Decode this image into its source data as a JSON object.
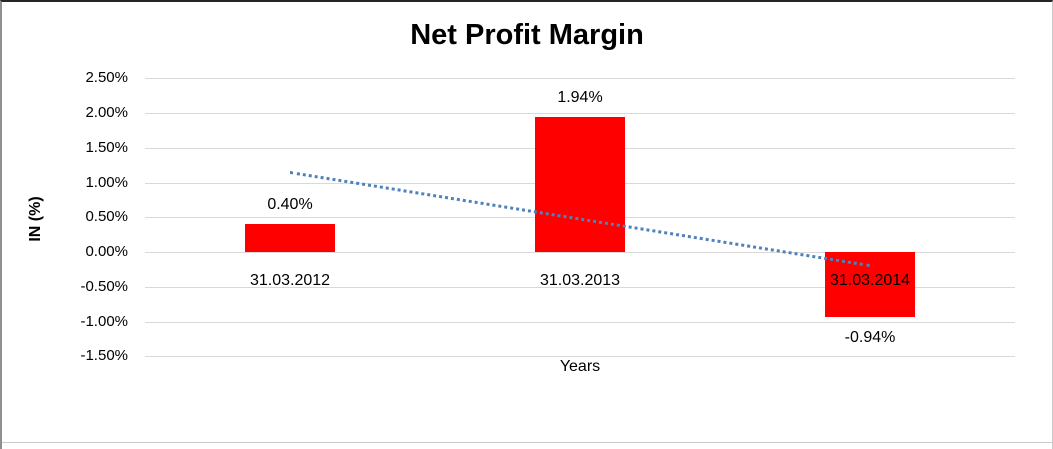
{
  "chart_data": {
    "type": "bar",
    "title": "Net Profit Margin",
    "xlabel": "Years",
    "ylabel": "IN (%)",
    "categories": [
      "31.03.2012",
      "31.03.2013",
      "31.03.2014"
    ],
    "values": [
      0.4,
      1.94,
      -0.94
    ],
    "data_labels": [
      "0.40%",
      "1.94%",
      "-0.94%"
    ],
    "ytick_labels": [
      "2.50%",
      "2.00%",
      "1.50%",
      "1.00%",
      "0.50%",
      "0.00%",
      "-0.50%",
      "-1.00%",
      "-1.50%"
    ],
    "ytick_values": [
      2.5,
      2.0,
      1.5,
      1.0,
      0.5,
      0.0,
      -0.5,
      -1.0,
      -1.5
    ],
    "ylim": [
      -1.5,
      2.5
    ],
    "grid": true,
    "legend": false,
    "bar_color": "#ff0000",
    "gridline_color": "#d9d9d9",
    "trendline": {
      "type": "linear",
      "style": "dotted",
      "color": "#4f81bd",
      "start_value": 1.14,
      "end_value": -0.2
    }
  }
}
